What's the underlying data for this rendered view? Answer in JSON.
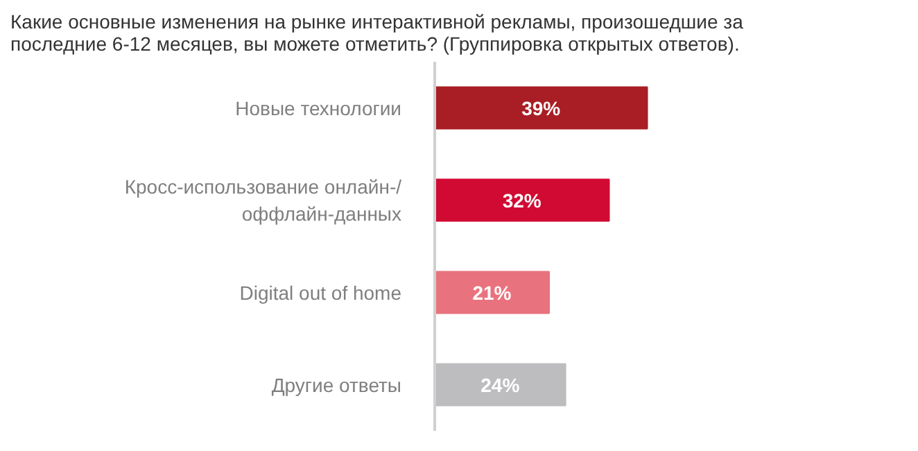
{
  "chart_data": {
    "type": "bar",
    "orientation": "horizontal",
    "title": "Какие основные изменения на рынке интерактивной рекламы, произошедшие за последние 6-12 месяцев, вы можете отметить? (Группировка открытых ответов).",
    "categories": [
      "Новые технологии",
      "Кросс-использование онлайн-/\nоффлайн-данных",
      "Digital out of home",
      "Другие ответы"
    ],
    "values": [
      39,
      32,
      21,
      24
    ],
    "value_labels": [
      "39%",
      "32%",
      "21%",
      "24%"
    ],
    "colors": [
      "#a91e24",
      "#d10a33",
      "#e8737e",
      "#bdbdbf"
    ]
  }
}
